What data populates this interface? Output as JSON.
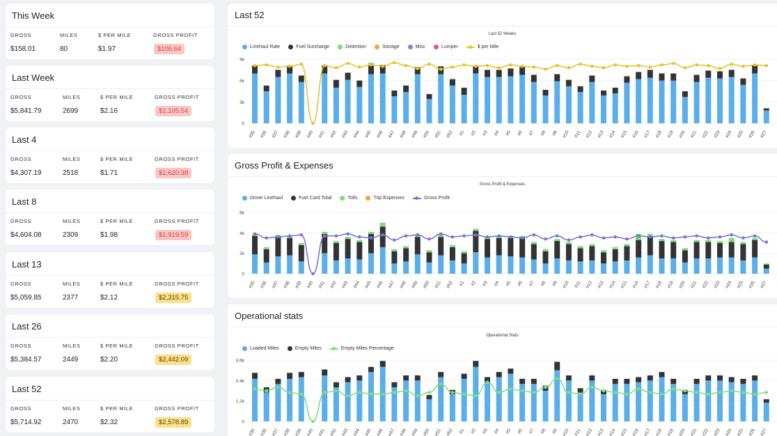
{
  "columns": {
    "gross": "GROSS",
    "miles": "MILES",
    "per_mile": "$ PER MILE",
    "gross_profit": "GROSS PROFIT"
  },
  "summary_cards": [
    {
      "title": "This Week",
      "gross": "$158.01",
      "miles": "80",
      "per_mile": "$1.97",
      "gross_profit": "$106.64",
      "badge": "red"
    },
    {
      "title": "Last Week",
      "gross": "$5,841.79",
      "miles": "2699",
      "per_mile": "$2.16",
      "gross_profit": "$2,105.54",
      "badge": "red"
    },
    {
      "title": "Last 4",
      "gross": "$4,307.19",
      "miles": "2518",
      "per_mile": "$1.71",
      "gross_profit": "$1,620.38",
      "badge": "red"
    },
    {
      "title": "Last 8",
      "gross": "$4,604.08",
      "miles": "2309",
      "per_mile": "$1.98",
      "gross_profit": "$1,919.59",
      "badge": "red"
    },
    {
      "title": "Last 13",
      "gross": "$5,059.85",
      "miles": "2377",
      "per_mile": "$2.12",
      "gross_profit": "$2,315.75",
      "badge": "yellow"
    },
    {
      "title": "Last 26",
      "gross": "$5,384.57",
      "miles": "2449",
      "per_mile": "$2.20",
      "gross_profit": "$2,442.09",
      "badge": "yellow"
    },
    {
      "title": "Last 52",
      "gross": "$5,714.92",
      "miles": "2470",
      "per_mile": "$2.32",
      "gross_profit": "$2,578.89",
      "badge": "yellow"
    }
  ],
  "badge_colors": {
    "red": {
      "bg": "#f9c6c6",
      "fg": "#d9443c"
    },
    "yellow": {
      "bg": "#fbdf8a",
      "fg": "#5a4600"
    }
  },
  "weeks": [
    "#35",
    "#36",
    "#37",
    "#38",
    "#39",
    "#40",
    "#41",
    "#42",
    "#43",
    "#44",
    "#45",
    "#46",
    "#47",
    "#48",
    "#49",
    "#50",
    "#51",
    "#52",
    "#1",
    "#2",
    "#3",
    "#4",
    "#5",
    "#6",
    "#7",
    "#8",
    "#9",
    "#10",
    "#11",
    "#12",
    "#13",
    "#14",
    "#15",
    "#16",
    "#17",
    "#18",
    "#19",
    "#20",
    "#21",
    "#22",
    "#23",
    "#24",
    "#25",
    "#26",
    "#27"
  ],
  "panels": {
    "last52": {
      "title": "Last 52"
    },
    "gross_profit": {
      "title": "Gross Profit & Expenses"
    },
    "operational": {
      "title": "Operational stats"
    }
  },
  "chart_data": [
    {
      "type": "bar",
      "title": "Last 52 Weeks",
      "stacked": true,
      "ylim": [
        0,
        9000
      ],
      "yticks": [
        "0",
        "3k",
        "6k",
        "9k"
      ],
      "legend_position": "top-left",
      "series": [
        {
          "name": "Linehaul Rate",
          "color": "#5aaeea",
          "values": [
            7000,
            4500,
            6500,
            7000,
            5800,
            0,
            7000,
            5000,
            6100,
            5100,
            6900,
            7000,
            3800,
            4400,
            6900,
            3400,
            6900,
            5300,
            4000,
            7000,
            6500,
            6500,
            6600,
            6800,
            5800,
            3900,
            5900,
            5200,
            4400,
            5800,
            3900,
            4200,
            5700,
            6200,
            6400,
            6000,
            6000,
            3700,
            5800,
            6400,
            6300,
            6500,
            5400,
            7000,
            1800
          ]
        },
        {
          "name": "Fuel Surcharge",
          "color": "#333333",
          "values": [
            1100,
            800,
            1000,
            1100,
            900,
            0,
            1100,
            1100,
            1000,
            900,
            1200,
            1200,
            800,
            900,
            1000,
            700,
            1100,
            900,
            1000,
            1100,
            1000,
            1000,
            1100,
            1100,
            1000,
            800,
            1000,
            900,
            800,
            900,
            700,
            800,
            900,
            1000,
            1100,
            1000,
            1000,
            800,
            1000,
            1000,
            1000,
            1000,
            900,
            1100,
            300
          ]
        },
        {
          "name": "Detention",
          "color": "#76df76",
          "values": [
            0,
            0,
            0,
            0,
            0,
            0,
            0,
            0,
            0,
            0,
            400,
            0,
            0,
            0,
            0,
            0,
            0,
            0,
            0,
            0,
            0,
            0,
            0,
            0,
            0,
            0,
            0,
            0,
            0,
            0,
            0,
            0,
            0,
            0,
            0,
            0,
            0,
            0,
            0,
            0,
            0,
            0,
            0,
            0,
            0
          ]
        },
        {
          "name": "Storage",
          "color": "#f5a04a",
          "values": []
        },
        {
          "name": "Misc",
          "color": "#8a7fdc",
          "values": []
        },
        {
          "name": "Lumper",
          "color": "#f24f7a",
          "values": []
        },
        {
          "name": "$ per Mile",
          "color": "#e8c32c",
          "type": "line",
          "values": [
            8100,
            8200,
            7900,
            8000,
            8300,
            0,
            8100,
            7800,
            8400,
            7900,
            8200,
            8000,
            8500,
            8100,
            7700,
            8300,
            7600,
            7900,
            8200,
            8000,
            8100,
            7800,
            8200,
            8000,
            7900,
            7600,
            8100,
            7800,
            8300,
            8000,
            7800,
            8200,
            8000,
            8100,
            7900,
            8200,
            8400,
            7800,
            8200,
            8100,
            7700,
            8300,
            8000,
            8200,
            8100
          ]
        }
      ]
    },
    {
      "type": "bar",
      "title": "Gross Profit & Expenses",
      "stacked": true,
      "ylim": [
        0,
        6000
      ],
      "yticks": [
        "0",
        "2k",
        "4k",
        "6k"
      ],
      "legend_position": "top-left",
      "series": [
        {
          "name": "Driver Linehaul",
          "color": "#5aaeea",
          "values": [
            1900,
            1100,
            1700,
            1800,
            1200,
            0,
            2000,
            1300,
            1500,
            1400,
            2000,
            2600,
            1000,
            1200,
            1900,
            1100,
            1800,
            1300,
            1000,
            2100,
            1600,
            1800,
            1700,
            1600,
            1400,
            1000,
            1500,
            1300,
            1200,
            1300,
            1000,
            1200,
            1300,
            1600,
            1800,
            1500,
            1500,
            1100,
            1500,
            1500,
            1600,
            1600,
            1300,
            1600,
            500
          ]
        },
        {
          "name": "Fuel Card Total",
          "color": "#333333",
          "values": [
            1800,
            1300,
            1900,
            1700,
            1600,
            0,
            1900,
            1700,
            1900,
            1700,
            1900,
            2000,
            1200,
            1300,
            1700,
            1000,
            1800,
            1300,
            1000,
            2100,
            1800,
            1700,
            1800,
            1900,
            1500,
            1200,
            1700,
            1600,
            1300,
            1400,
            1100,
            1200,
            1400,
            1700,
            1900,
            1700,
            1600,
            1200,
            1600,
            1600,
            1400,
            1500,
            1600,
            1700,
            400
          ]
        },
        {
          "name": "Tolls",
          "color": "#76df76",
          "values": [
            200,
            200,
            200,
            200,
            200,
            0,
            200,
            200,
            200,
            200,
            200,
            400,
            200,
            200,
            200,
            200,
            200,
            200,
            200,
            200,
            200,
            200,
            200,
            200,
            200,
            200,
            200,
            200,
            200,
            200,
            200,
            200,
            200,
            600,
            200,
            200,
            200,
            200,
            200,
            200,
            200,
            400,
            200,
            200,
            100
          ]
        },
        {
          "name": "Trip Expenses",
          "color": "#f5a04a",
          "values": []
        },
        {
          "name": "Gross Profit",
          "color": "#7a76d6",
          "type": "line",
          "values": [
            3900,
            3500,
            3600,
            3700,
            3800,
            0,
            3700,
            3700,
            3900,
            3600,
            3500,
            3800,
            3300,
            3700,
            3800,
            3400,
            3900,
            3600,
            3700,
            3800,
            3600,
            3700,
            3600,
            3500,
            3800,
            3400,
            3700,
            3300,
            3600,
            3800,
            3500,
            3600,
            3400,
            3700,
            3600,
            3700,
            3500,
            3600,
            3700,
            3500,
            3600,
            3800,
            3500,
            3700,
            3100
          ]
        }
      ]
    },
    {
      "type": "bar",
      "title": "Operational Stats",
      "stacked": true,
      "ylim": [
        0,
        3600
      ],
      "yticks": [
        "0",
        "1.2k",
        "2.4k",
        "3.6k"
      ],
      "legend_position": "top-left",
      "series": [
        {
          "name": "Loaded Miles",
          "color": "#5aaeea",
          "values": [
            2500,
            1700,
            2200,
            2500,
            2600,
            0,
            2700,
            2000,
            2300,
            2400,
            2900,
            3200,
            2000,
            2400,
            2400,
            1300,
            2600,
            1600,
            2500,
            3200,
            2300,
            2600,
            2800,
            2200,
            2200,
            1800,
            3000,
            2400,
            1700,
            2400,
            1600,
            2200,
            2200,
            2300,
            2400,
            2600,
            2200,
            1600,
            2200,
            2400,
            2400,
            2300,
            2200,
            2400,
            1100
          ]
        },
        {
          "name": "Empty Miles",
          "color": "#333333",
          "values": [
            350,
            300,
            300,
            350,
            300,
            0,
            350,
            300,
            300,
            300,
            300,
            350,
            300,
            300,
            300,
            250,
            300,
            250,
            300,
            350,
            300,
            300,
            300,
            300,
            300,
            300,
            500,
            300,
            250,
            300,
            250,
            300,
            300,
            300,
            300,
            300,
            300,
            250,
            300,
            300,
            300,
            300,
            300,
            300,
            200
          ]
        },
        {
          "name": "Empty Miles Percentage",
          "color": "#7be07b",
          "type": "line",
          "values": [
            1900,
            1800,
            2000,
            1700,
            1600,
            0,
            1700,
            1800,
            1500,
            1700,
            1600,
            1600,
            1700,
            1800,
            1500,
            1700,
            2200,
            1700,
            1600,
            1500,
            2300,
            1700,
            1900,
            1800,
            1700,
            2000,
            2500,
            1700,
            1600,
            2000,
            1800,
            1700,
            1600,
            1900,
            1700,
            1600,
            1900,
            1800,
            1700,
            1600,
            1700,
            1800,
            1700,
            1600,
            1700
          ]
        }
      ]
    }
  ]
}
